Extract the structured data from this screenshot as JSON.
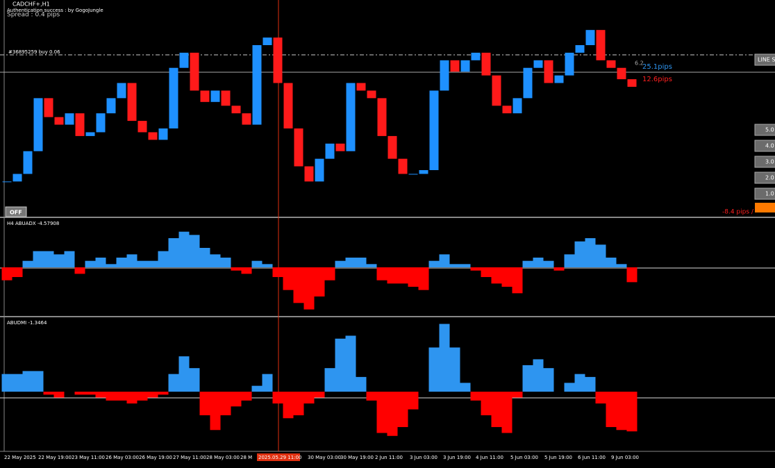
{
  "ui": {
    "symbol": "CADCHF+,H1",
    "auth": "Authentication success : by GogoJungle",
    "spread": "Spread : 0.4 pips",
    "order": "#36895259 buy 0.06",
    "line_button": "LINE S",
    "pips_blue": "25.1pips",
    "pips_red": "12.6pips",
    "small_label": "6.2",
    "buttons": [
      "5.0",
      "4.0",
      "3.0",
      "2.0",
      "1.0"
    ],
    "off": "OFF",
    "loss": "-8.4 pips /",
    "adx_title": "H4 ABUADX  -4.57908",
    "dmi_title": "ABUDMI  -1.3464",
    "time_labels": [
      "22 May 2025",
      "22 May 19:00",
      "23 May 11:00",
      "26 May 03:00",
      "26 May 19:00",
      "27 May 11:00",
      "28 May 03:00",
      "28 M",
      "2025.05.29 11:00",
      "30 May 03:00",
      "30 May 19:00",
      "2 Jun 11:00",
      "3 Jun 03:00",
      "3 Jun 19:00",
      "4 Jun 11:00",
      "5 Jun 03:00",
      "5 Jun 19:00",
      "6 Jun 11:00",
      "9 Jun 03:00"
    ]
  },
  "chart_data": [
    {
      "type": "candlestick",
      "up_color": "#1e90ff",
      "down_color": "#ff1a1a",
      "ylim": [
        0.5955,
        0.601
      ],
      "values": [
        0.5963,
        0.5965,
        0.5971,
        0.5985,
        0.598,
        0.5978,
        0.5981,
        0.5975,
        0.5976,
        0.5981,
        0.5985,
        0.5989,
        0.5979,
        0.5976,
        0.5974,
        0.5977,
        0.5993,
        0.5997,
        0.5987,
        0.5984,
        0.5987,
        0.5983,
        0.5981,
        0.5978,
        0.5999,
        0.6001,
        0.5989,
        0.5977,
        0.5967,
        0.5963,
        0.5969,
        0.5973,
        0.5971,
        0.5989,
        0.5987,
        0.5985,
        0.5975,
        0.5969,
        0.5965,
        0.5965,
        0.5966,
        0.5987,
        0.5995,
        0.5992,
        0.5995,
        0.5997,
        0.5991,
        0.5983,
        0.5981,
        0.5985,
        0.5993,
        0.5995,
        0.5989,
        0.5991,
        0.5997,
        0.5999,
        0.6003,
        0.5995,
        0.5993,
        0.599,
        0.5988
      ]
    },
    {
      "type": "bar",
      "pos_color": "#2e95f0",
      "neg_color": "#ff0000",
      "ylim": [
        -15,
        15
      ],
      "values": [
        -4,
        -3,
        2,
        5,
        5,
        4,
        5,
        -2,
        2,
        3,
        1,
        3,
        4,
        2,
        2,
        5,
        9,
        11,
        10,
        6,
        4,
        3,
        -1,
        -2,
        2,
        1,
        -3,
        -7,
        -11,
        -13,
        -9,
        -4,
        2,
        3,
        3,
        1,
        -4,
        -5,
        -5,
        -6,
        -7,
        2,
        4,
        1,
        1,
        -1,
        -3,
        -5,
        -6,
        -8,
        2,
        3,
        2,
        -1,
        4,
        8,
        9,
        7,
        3,
        1,
        -4.57908
      ]
    },
    {
      "type": "bar",
      "pos_color": "#2e95f0",
      "neg_color": "#ff0000",
      "ylim": [
        -2,
        2.5
      ],
      "values": [
        0.6,
        0.6,
        0.7,
        0.7,
        -0.1,
        -0.2,
        0,
        -0.1,
        -0.1,
        -0.2,
        -0.3,
        -0.3,
        -0.4,
        -0.3,
        -0.2,
        -0.1,
        0.6,
        1.2,
        0.8,
        -0.8,
        -1.3,
        -0.8,
        -0.5,
        -0.3,
        0.2,
        0.6,
        -0.4,
        -0.9,
        -0.8,
        -0.4,
        -0.2,
        0.8,
        1.8,
        1.9,
        0.5,
        -0.3,
        -1.4,
        -1.5,
        -1.2,
        -0.6,
        0,
        1.5,
        2.3,
        1.5,
        0.3,
        -0.3,
        -0.8,
        -1.2,
        -1.4,
        -0.2,
        0.9,
        1.1,
        0.8,
        0,
        0.3,
        0.6,
        0.5,
        -0.4,
        -1.2,
        -1.3,
        -1.3464
      ]
    }
  ]
}
